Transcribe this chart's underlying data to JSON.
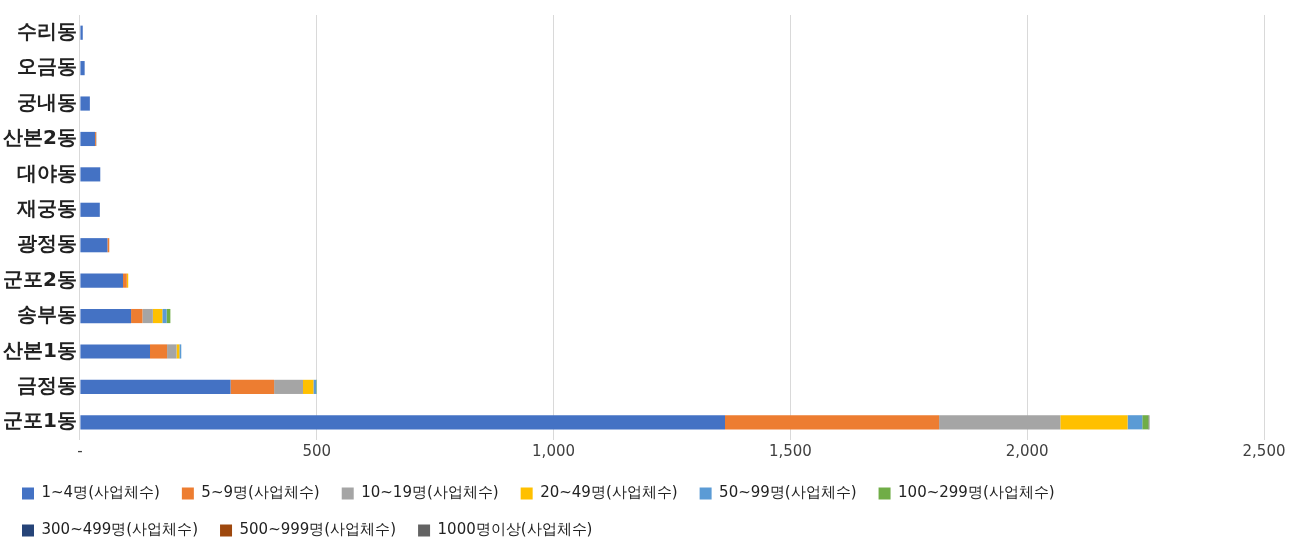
{
  "chart_data": {
    "type": "bar",
    "orientation": "horizontal",
    "stacked": true,
    "categories": [
      "수리동",
      "오금동",
      "궁내동",
      "산본2동",
      "대야동",
      "재궁동",
      "광정동",
      "군포2동",
      "송부동",
      "산본1동",
      "금정동",
      "군포1동"
    ],
    "series": [
      {
        "name": "1~4명(사업체수)",
        "color": "#4472c4",
        "values": [
          6,
          10,
          21,
          32,
          43,
          42,
          58,
          91,
          108,
          148,
          318,
          1362
        ]
      },
      {
        "name": "5~9명(사업체수)",
        "color": "#ed7d31",
        "values": [
          0,
          0,
          0,
          2,
          0,
          0,
          4,
          8,
          24,
          36,
          92,
          452
        ]
      },
      {
        "name": "10~19명(사업체수)",
        "color": "#a5a5a5",
        "values": [
          0,
          0,
          0,
          1,
          0,
          0,
          0,
          null,
          22,
          20,
          61,
          256
        ]
      },
      {
        "name": "20~49명(사업체수)",
        "color": "#ffc000",
        "values": [
          0,
          0,
          0,
          0,
          null,
          0,
          0,
          3,
          20,
          6,
          22,
          142
        ]
      },
      {
        "name": "50~99명(사업체수)",
        "color": "#5b9bd5",
        "values": [
          0,
          0,
          0,
          0,
          0,
          0,
          0,
          0,
          9,
          4,
          6,
          31
        ]
      },
      {
        "name": "100~299명(사업체수)",
        "color": "#70ad47",
        "values": [
          0,
          0,
          0,
          0,
          0,
          0,
          0,
          0,
          8,
          0,
          1,
          13
        ]
      },
      {
        "name": "300~499명(사업체수)",
        "color": "#264478",
        "values": [
          0,
          0,
          0,
          0,
          0,
          0,
          0,
          0,
          0,
          0,
          0,
          0
        ]
      },
      {
        "name": "500~999명(사업체수)",
        "color": "#9e480e",
        "values": [
          0,
          0,
          0,
          0,
          0,
          0,
          0,
          0,
          0,
          0,
          0,
          0
        ]
      },
      {
        "name": "1000명이상(사업체수)",
        "color": "#636363",
        "values": [
          0,
          0,
          0,
          0,
          0,
          0,
          0,
          0,
          0,
          0,
          0,
          2
        ]
      }
    ],
    "xlim": [
      0,
      2500
    ],
    "xticks": [
      {
        "value": 0,
        "label": "-"
      },
      {
        "value": 500,
        "label": "500"
      },
      {
        "value": 1000,
        "label": "1,000"
      },
      {
        "value": 1500,
        "label": "1,500"
      },
      {
        "value": 2000,
        "label": "2,000"
      },
      {
        "value": 2500,
        "label": "2,500"
      }
    ],
    "grid": "x",
    "legend": "bottom"
  }
}
